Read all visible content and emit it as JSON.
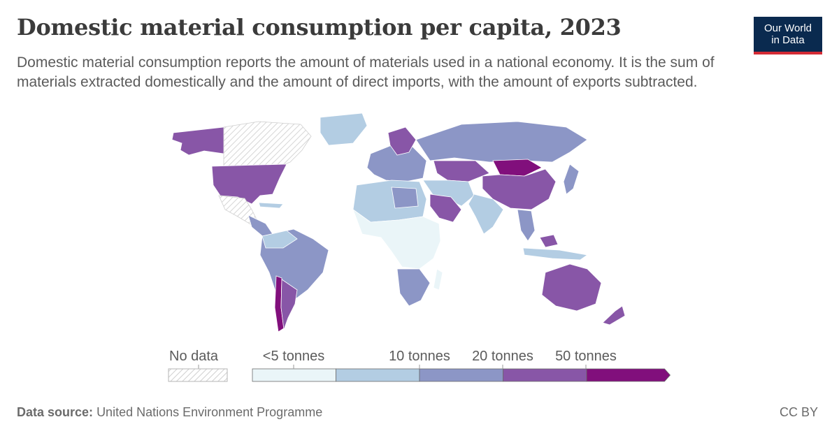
{
  "header": {
    "title": "Domestic material consumption per capita, 2023",
    "subtitle": "Domestic material consumption reports the amount of materials used in a national economy. It is the sum of materials extracted domestically and the amount of direct imports, with the amount of exports subtracted."
  },
  "logo": {
    "line1": "Our World",
    "line2": "in Data"
  },
  "legend": {
    "no_data_label": "No data",
    "bins": [
      {
        "label": "<5 tonnes",
        "color": "#eaf5f8"
      },
      {
        "label": "",
        "color": "#b3cde3"
      },
      {
        "label": "10 tonnes",
        "color": "#8c96c6"
      },
      {
        "label": "20 tonnes",
        "color": "#8856a7"
      },
      {
        "label": "50 tonnes",
        "color": "#810f7c"
      }
    ]
  },
  "map": {
    "regions": [
      {
        "name": "North America (USA)",
        "color": "#8856a7"
      },
      {
        "name": "Canada",
        "color": "nodata"
      },
      {
        "name": "Greenland",
        "color": "#b3cde3"
      },
      {
        "name": "Mexico",
        "color": "nodata"
      },
      {
        "name": "South America",
        "color": "#8c96c6"
      },
      {
        "name": "Chile",
        "color": "#810f7c"
      },
      {
        "name": "Europe",
        "color": "#8c96c6"
      },
      {
        "name": "Russia",
        "color": "#8c96c6"
      },
      {
        "name": "Africa",
        "color": "#eaf5f8"
      },
      {
        "name": "Southern Africa",
        "color": "#8c96c6"
      },
      {
        "name": "Saudi Arabia",
        "color": "#8856a7"
      },
      {
        "name": "China",
        "color": "#8856a7"
      },
      {
        "name": "Mongolia",
        "color": "#810f7c"
      },
      {
        "name": "India",
        "color": "#b3cde3"
      },
      {
        "name": "Australia",
        "color": "#8856a7"
      }
    ]
  },
  "footer": {
    "source_label": "Data source:",
    "source_value": "United Nations Environment Programme",
    "license": "CC BY"
  }
}
